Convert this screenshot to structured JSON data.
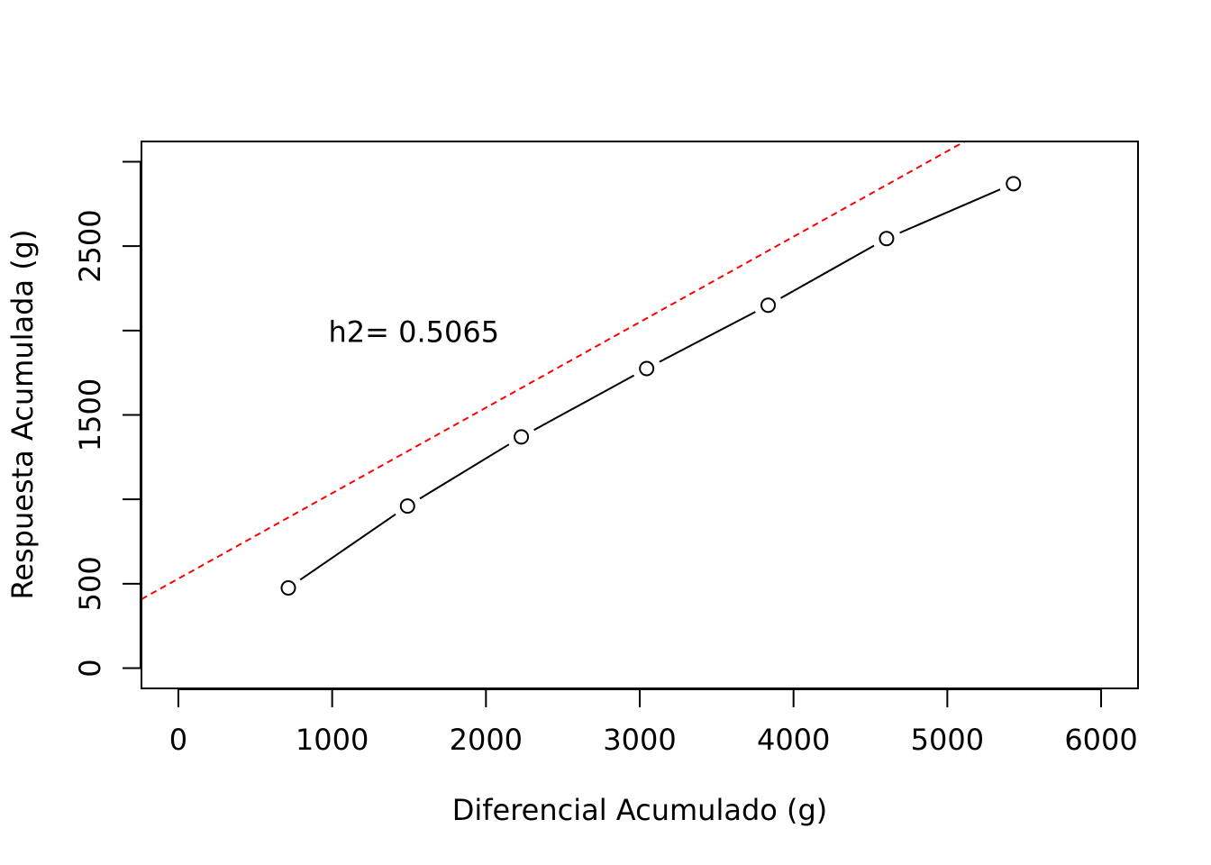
{
  "chart_data": {
    "type": "scatter",
    "title": "",
    "xlabel": "Diferencial Acumulado (g)",
    "ylabel": "Respuesta Acumulada (g)",
    "xlim": [
      -240,
      6240
    ],
    "ylim": [
      -120,
      3120
    ],
    "x_ticks": [
      0,
      1000,
      2000,
      3000,
      4000,
      5000,
      6000
    ],
    "x_tick_labels": [
      "0",
      "1000",
      "2000",
      "3000",
      "4000",
      "5000",
      "6000"
    ],
    "y_ticks": [
      0,
      500,
      1000,
      1500,
      2000,
      2500,
      3000
    ],
    "y_tick_labels": [
      "0",
      "500",
      "",
      "1500",
      "",
      "2500",
      ""
    ],
    "grid": false,
    "series": [
      {
        "style": "points-and-lines",
        "color": "#000000",
        "x": [
          715,
          1490,
          2230,
          3045,
          3835,
          4605,
          5430
        ],
        "y": [
          475,
          960,
          1370,
          1775,
          2150,
          2545,
          2870
        ]
      }
    ],
    "regression_line": {
      "color": "#ff0000",
      "style": "dashed",
      "intercept": 530,
      "slope": 0.5065
    },
    "annotations": [
      {
        "text": "h2= 0.5065",
        "x": 2000,
        "y": 1990
      }
    ]
  }
}
